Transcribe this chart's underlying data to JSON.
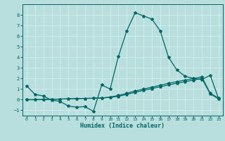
{
  "xlabel": "Humidex (Indice chaleur)",
  "background_color": "#b8dede",
  "grid_color": "#d4eeee",
  "line_color": "#006666",
  "xlim": [
    -0.5,
    23.5
  ],
  "ylim": [
    -1.5,
    9.0
  ],
  "xticks": [
    0,
    1,
    2,
    3,
    4,
    5,
    6,
    7,
    8,
    9,
    10,
    11,
    12,
    13,
    14,
    15,
    16,
    17,
    18,
    19,
    20,
    21,
    22,
    23
  ],
  "yticks": [
    -1,
    0,
    1,
    2,
    3,
    4,
    5,
    6,
    7,
    8
  ],
  "line1_x": [
    0,
    1,
    2,
    3,
    4,
    5,
    6,
    7,
    8,
    9,
    10,
    11,
    12,
    13,
    14,
    15,
    16,
    17,
    18,
    19,
    20,
    21,
    22,
    23
  ],
  "line1_y": [
    1.3,
    0.5,
    0.35,
    -0.05,
    -0.15,
    -0.6,
    -0.7,
    -0.65,
    -1.1,
    1.4,
    1.0,
    4.1,
    6.5,
    8.2,
    7.9,
    7.6,
    6.5,
    4.0,
    2.8,
    2.2,
    2.0,
    1.9,
    2.3,
    0.1
  ],
  "line2_x": [
    0,
    1,
    2,
    3,
    4,
    5,
    6,
    7,
    8,
    9,
    10,
    11,
    12,
    13,
    14,
    15,
    16,
    17,
    18,
    19,
    20,
    21,
    22,
    23
  ],
  "line2_y": [
    0.0,
    0.0,
    0.02,
    0.04,
    0.06,
    0.08,
    0.1,
    0.12,
    0.14,
    0.16,
    0.22,
    0.32,
    0.5,
    0.7,
    0.88,
    1.05,
    1.22,
    1.4,
    1.55,
    1.7,
    1.85,
    2.0,
    0.55,
    0.08
  ],
  "line3_x": [
    0,
    1,
    2,
    3,
    4,
    5,
    6,
    7,
    8,
    9,
    10,
    11,
    12,
    13,
    14,
    15,
    16,
    17,
    18,
    19,
    20,
    21,
    22,
    23
  ],
  "line3_y": [
    0.0,
    0.0,
    0.02,
    0.04,
    0.06,
    0.08,
    0.1,
    0.12,
    0.14,
    0.16,
    0.25,
    0.4,
    0.6,
    0.82,
    1.0,
    1.18,
    1.36,
    1.55,
    1.7,
    1.85,
    2.0,
    2.15,
    0.6,
    0.15
  ]
}
